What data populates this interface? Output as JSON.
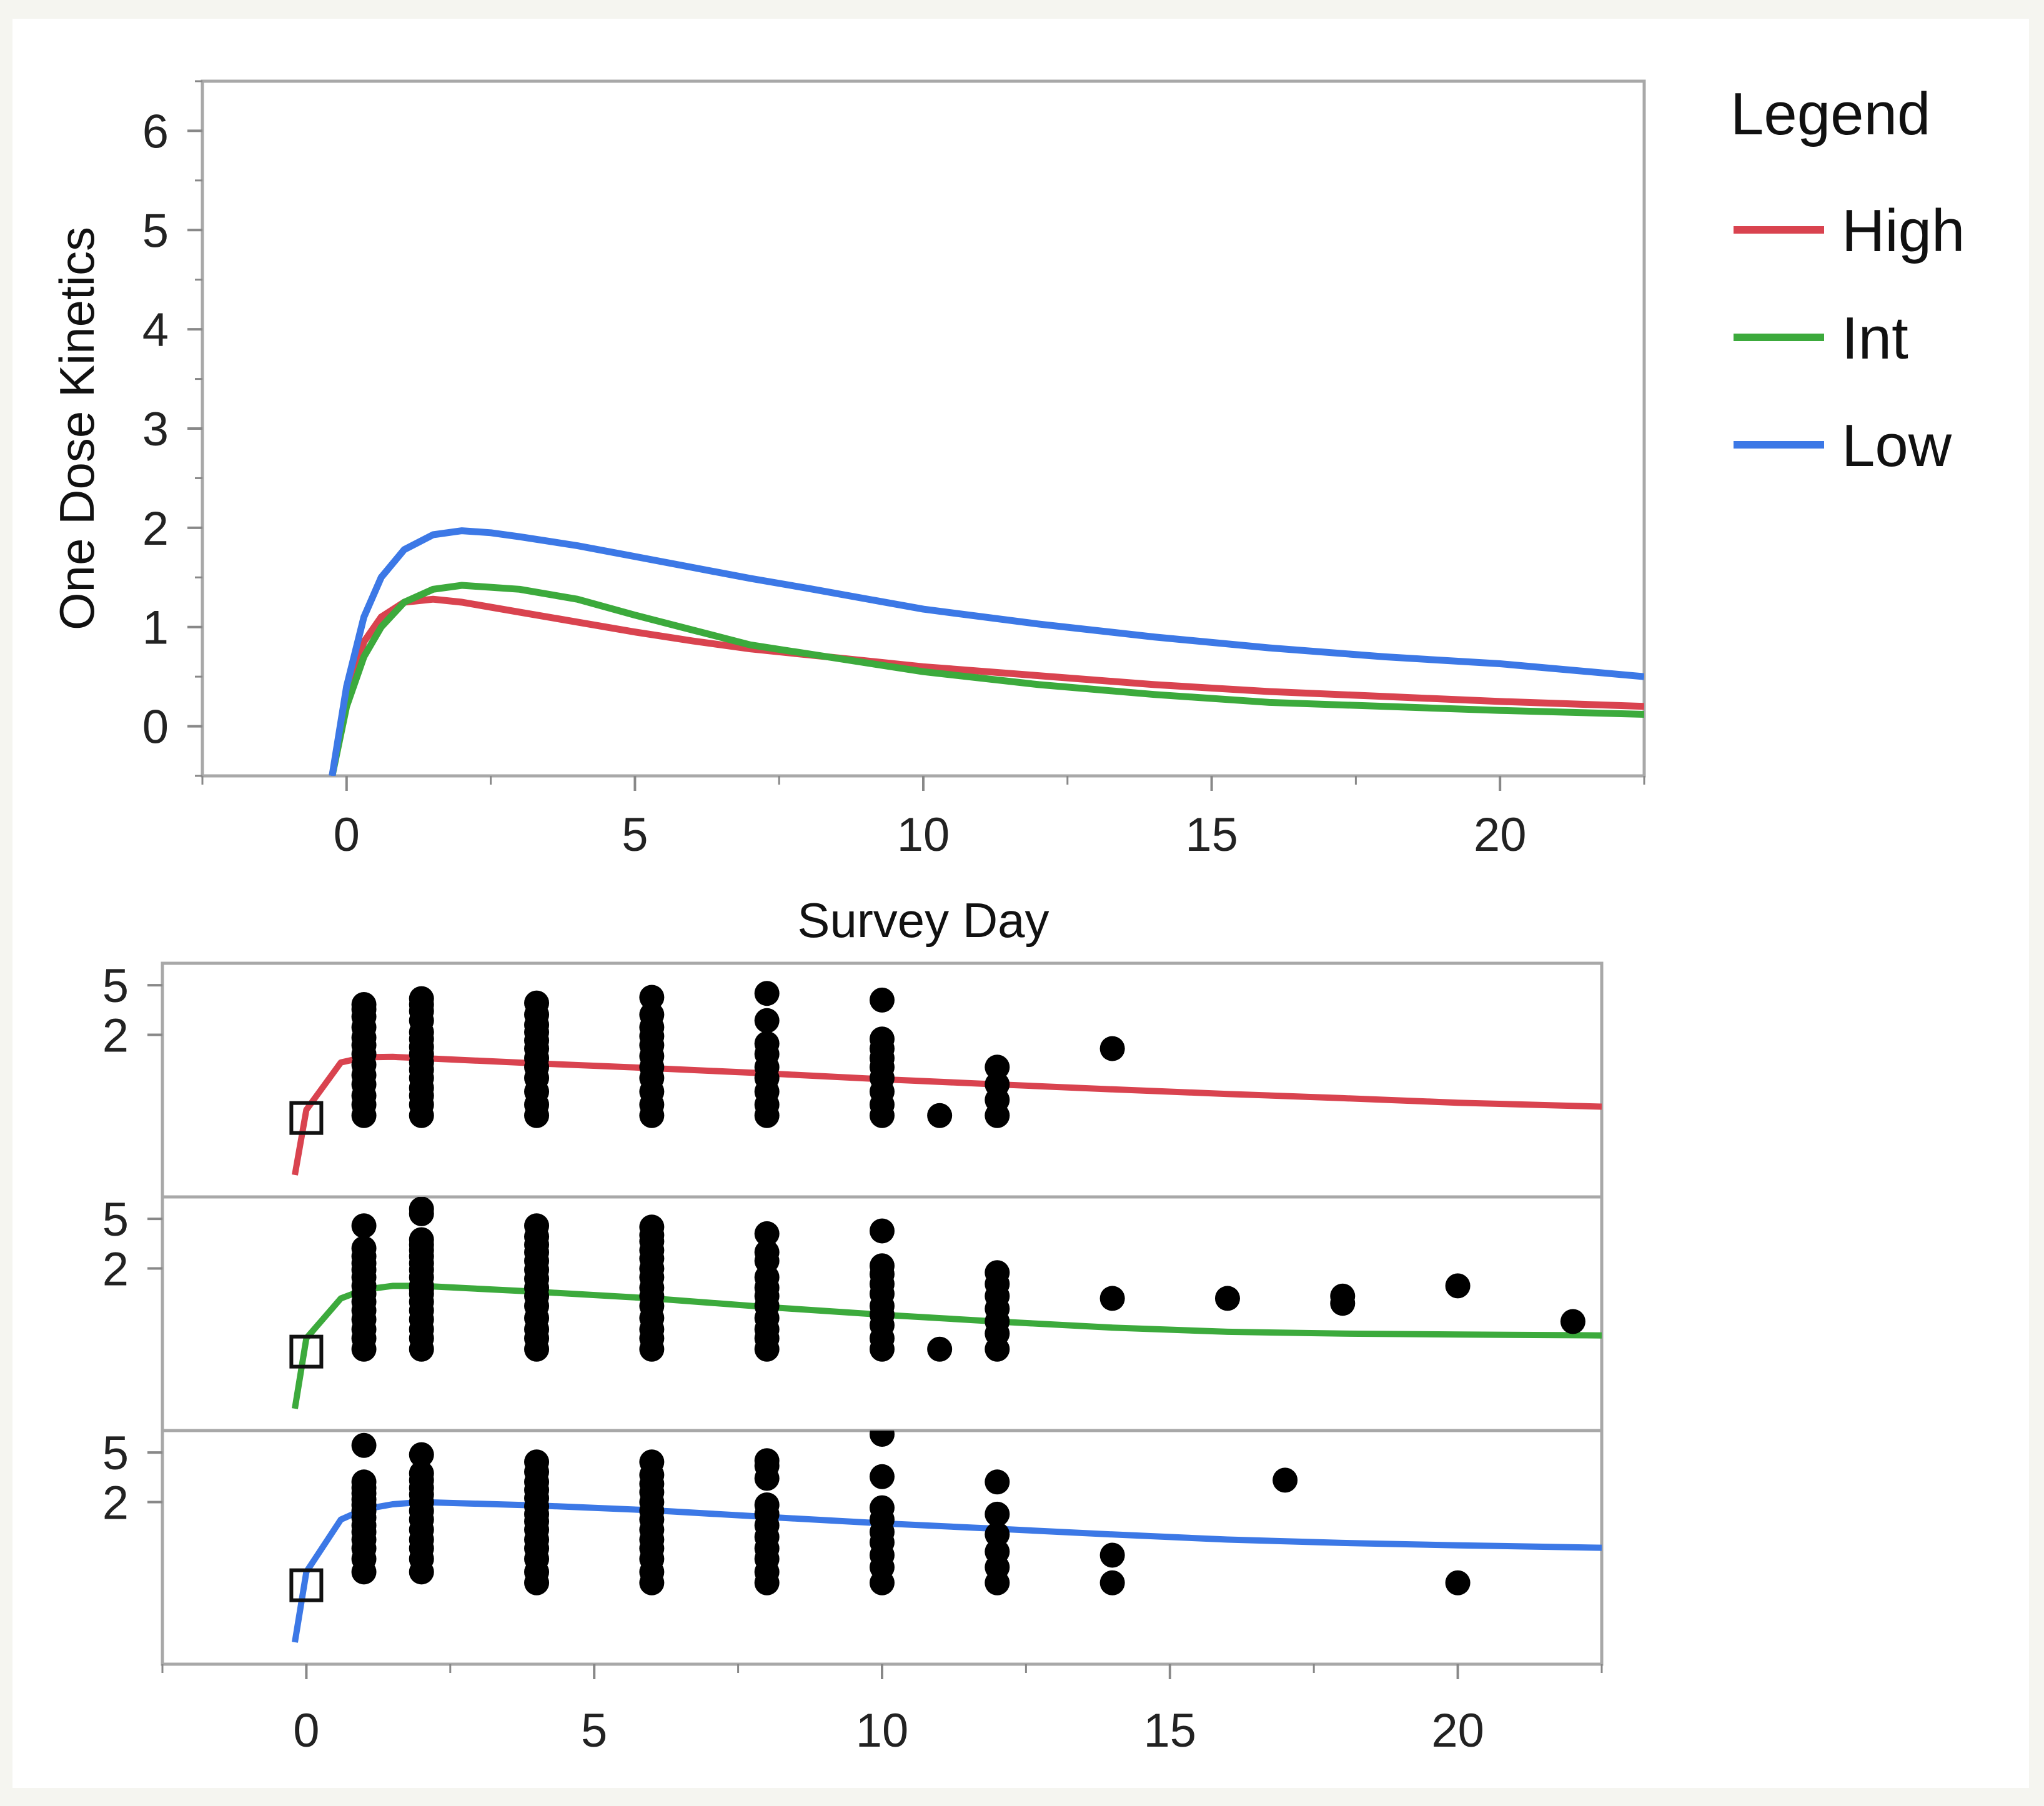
{
  "chart_data": [
    {
      "type": "line",
      "title": "",
      "xlabel": "Survey Day",
      "ylabel": "One Dose Kinetics",
      "xlim": [
        -2.5,
        22.5
      ],
      "ylim": [
        -0.5,
        6.5
      ],
      "xticks": [
        0,
        5,
        10,
        15,
        20
      ],
      "yticks": [
        0,
        1,
        2,
        3,
        4,
        5,
        6
      ],
      "xtick_labels": [
        "0",
        "5",
        "10",
        "15",
        "20"
      ],
      "ytick_labels": [
        "0",
        "1",
        "2",
        "3",
        "4",
        "5",
        "6"
      ],
      "legend": {
        "title": "Legend",
        "position": "right",
        "entries": [
          {
            "name": "High",
            "color": "#d9434f"
          },
          {
            "name": "Int",
            "color": "#3caa3c"
          },
          {
            "name": "Low",
            "color": "#3c78e6"
          }
        ]
      },
      "series": [
        {
          "name": "High",
          "color": "#d9434f",
          "x": [
            -0.25,
            0,
            0.3,
            0.6,
            1.0,
            1.5,
            2.0,
            3.0,
            4.0,
            5.0,
            6.0,
            7.0,
            8.0,
            10.0,
            12.0,
            14.0,
            16.0,
            18.0,
            20.0,
            22.5
          ],
          "y": [
            -0.5,
            0.3,
            0.85,
            1.1,
            1.25,
            1.28,
            1.25,
            1.15,
            1.05,
            0.95,
            0.86,
            0.78,
            0.72,
            0.6,
            0.51,
            0.42,
            0.35,
            0.3,
            0.25,
            0.2
          ]
        },
        {
          "name": "Int",
          "color": "#3caa3c",
          "x": [
            -0.25,
            0,
            0.3,
            0.6,
            1.0,
            1.5,
            2.0,
            3.0,
            4.0,
            5.0,
            6.0,
            7.0,
            8.0,
            10.0,
            12.0,
            14.0,
            16.0,
            18.0,
            20.0,
            22.5
          ],
          "y": [
            -0.5,
            0.2,
            0.7,
            1.0,
            1.25,
            1.38,
            1.42,
            1.38,
            1.28,
            1.12,
            0.97,
            0.82,
            0.73,
            0.55,
            0.42,
            0.32,
            0.24,
            0.2,
            0.16,
            0.12
          ]
        },
        {
          "name": "Low",
          "color": "#3c78e6",
          "x": [
            -0.25,
            0,
            0.3,
            0.6,
            1.0,
            1.5,
            2.0,
            2.5,
            3.0,
            4.0,
            5.0,
            6.0,
            7.0,
            8.0,
            10.0,
            12.0,
            14.0,
            16.0,
            18.0,
            20.0,
            22.5
          ],
          "y": [
            -0.5,
            0.4,
            1.1,
            1.5,
            1.78,
            1.93,
            1.97,
            1.95,
            1.91,
            1.82,
            1.71,
            1.6,
            1.49,
            1.39,
            1.18,
            1.03,
            0.9,
            0.79,
            0.7,
            0.63,
            0.5
          ]
        }
      ]
    },
    {
      "type": "scatter",
      "title": "",
      "xlabel": "",
      "ylabel": "",
      "xlim": [
        -2.5,
        22.5
      ],
      "xticks": [
        0,
        5,
        10,
        15,
        20
      ],
      "xtick_labels": [
        "0",
        "5",
        "10",
        "15",
        "20"
      ],
      "panels": [
        {
          "name": "High",
          "color": "#d9434f",
          "ylim": [
            0.1,
            7.5
          ],
          "yticks": [
            2,
            5
          ],
          "ytick_labels": [
            "2",
            "5"
          ],
          "fit_x": [
            -0.2,
            0,
            0.6,
            1.0,
            1.5,
            2.0,
            4.0,
            6.0,
            8.0,
            10.0,
            12.0,
            14.0,
            16.0,
            18.0,
            20.0,
            22.5
          ],
          "fit_y": [
            0.15,
            0.5,
            1.2,
            1.32,
            1.33,
            1.3,
            1.18,
            1.08,
            0.98,
            0.88,
            0.8,
            0.73,
            0.67,
            0.62,
            0.57,
            0.53
          ],
          "baseline_marker": {
            "x": 0,
            "y": 0.43
          },
          "points_x": [
            1,
            1,
            1,
            1,
            1,
            1,
            1,
            1,
            1,
            1,
            1,
            1,
            1,
            2,
            2,
            2,
            2,
            2,
            2,
            2,
            2,
            2,
            2,
            2,
            2,
            2,
            2,
            2,
            4,
            4,
            4,
            4,
            4,
            4,
            4,
            4,
            4,
            4,
            4,
            4,
            6,
            6,
            6,
            6,
            6,
            6,
            6,
            6,
            6,
            6,
            6,
            8,
            8,
            8,
            8,
            8,
            8,
            8,
            8,
            8,
            10,
            10,
            10,
            10,
            10,
            10,
            10,
            10,
            10,
            11,
            12,
            12,
            12,
            12,
            14
          ],
          "points_y": [
            0.45,
            0.55,
            0.65,
            0.8,
            0.95,
            1.15,
            1.4,
            1.65,
            1.9,
            2.3,
            2.8,
            3.2,
            3.5,
            0.45,
            0.55,
            0.65,
            0.75,
            0.9,
            1.05,
            1.2,
            1.4,
            1.6,
            1.85,
            2.1,
            2.6,
            3.1,
            3.5,
            3.9,
            0.45,
            0.55,
            0.7,
            0.9,
            1.1,
            1.3,
            1.55,
            1.8,
            2.1,
            2.4,
            2.9,
            3.6,
            0.45,
            0.55,
            0.7,
            0.9,
            1.1,
            1.35,
            1.65,
            1.95,
            2.3,
            2.9,
            4.0,
            0.45,
            0.55,
            0.7,
            0.9,
            1.1,
            1.4,
            1.7,
            2.6,
            4.3,
            0.45,
            0.55,
            0.7,
            0.9,
            1.1,
            1.3,
            1.55,
            1.85,
            3.8,
            0.45,
            0.45,
            0.6,
            0.8,
            1.1,
            1.55
          ]
        },
        {
          "name": "Int",
          "color": "#3caa3c",
          "ylim": [
            0.1,
            7.5
          ],
          "yticks": [
            2,
            5
          ],
          "ytick_labels": [
            "2",
            "5"
          ],
          "fit_x": [
            -0.2,
            0,
            0.6,
            1.0,
            1.5,
            2.0,
            4.0,
            6.0,
            8.0,
            10.0,
            12.0,
            14.0,
            16.0,
            18.0,
            20.0,
            22.5
          ],
          "fit_y": [
            0.15,
            0.55,
            1.15,
            1.35,
            1.45,
            1.45,
            1.3,
            1.15,
            0.98,
            0.85,
            0.75,
            0.67,
            0.62,
            0.6,
            0.59,
            0.58
          ],
          "baseline_marker": {
            "x": 0,
            "y": 0.43
          },
          "points_x": [
            1,
            1,
            1,
            1,
            1,
            1,
            1,
            1,
            1,
            1,
            1,
            1,
            1,
            1,
            2,
            2,
            2,
            2,
            2,
            2,
            2,
            2,
            2,
            2,
            2,
            2,
            2,
            2,
            2,
            2,
            2,
            2,
            4,
            4,
            4,
            4,
            4,
            4,
            4,
            4,
            4,
            4,
            4,
            4,
            4,
            4,
            6,
            6,
            6,
            6,
            6,
            6,
            6,
            6,
            6,
            6,
            6,
            6,
            6,
            6,
            8,
            8,
            8,
            8,
            8,
            8,
            8,
            8,
            8,
            8,
            8,
            10,
            10,
            10,
            10,
            10,
            10,
            10,
            10,
            10,
            10,
            11,
            12,
            12,
            12,
            12,
            12,
            12,
            12,
            14,
            16,
            18,
            18,
            20,
            22
          ],
          "points_y": [
            0.45,
            0.55,
            0.65,
            0.78,
            0.92,
            1.08,
            1.25,
            1.45,
            1.7,
            1.95,
            2.2,
            2.5,
            2.9,
            4.4,
            0.45,
            0.55,
            0.65,
            0.78,
            0.92,
            1.08,
            1.25,
            1.45,
            1.7,
            1.95,
            2.2,
            2.5,
            2.8,
            3.1,
            3.4,
            5.5,
            6.0,
            1.35,
            0.45,
            0.55,
            0.65,
            0.8,
            1.0,
            1.2,
            1.4,
            1.65,
            1.95,
            2.3,
            2.7,
            3.1,
            3.6,
            4.4,
            0.45,
            0.55,
            0.65,
            0.8,
            1.0,
            1.2,
            1.4,
            1.7,
            2.0,
            2.4,
            2.8,
            3.3,
            3.7,
            4.3,
            0.45,
            0.55,
            0.65,
            0.8,
            1.0,
            1.2,
            1.4,
            1.7,
            2.3,
            2.7,
            3.8,
            0.45,
            0.55,
            0.7,
            0.85,
            1.0,
            1.25,
            1.5,
            1.8,
            2.1,
            4.0,
            0.45,
            0.45,
            0.6,
            0.75,
            0.95,
            1.2,
            1.5,
            1.85,
            1.15,
            1.15,
            1.05,
            1.2,
            1.45,
            0.75
          ]
        },
        {
          "name": "Low",
          "color": "#3c78e6",
          "ylim": [
            0.1,
            7.5
          ],
          "yticks": [
            2,
            5
          ],
          "ytick_labels": [
            "2",
            "5"
          ],
          "fit_x": [
            -0.2,
            0,
            0.6,
            1.0,
            1.5,
            2.0,
            4.0,
            6.0,
            8.0,
            10.0,
            12.0,
            14.0,
            16.0,
            18.0,
            20.0,
            22.5
          ],
          "fit_y": [
            0.15,
            0.55,
            1.45,
            1.75,
            1.92,
            2.0,
            1.88,
            1.72,
            1.52,
            1.35,
            1.22,
            1.1,
            1.0,
            0.94,
            0.9,
            0.86
          ],
          "baseline_marker": {
            "x": 0,
            "y": 0.43
          },
          "points_x": [
            1,
            1,
            1,
            1,
            1,
            1,
            1,
            1,
            1,
            1,
            1,
            1,
            1,
            1,
            2,
            2,
            2,
            2,
            2,
            2,
            2,
            2,
            2,
            2,
            2,
            2,
            2,
            4,
            4,
            4,
            4,
            4,
            4,
            4,
            4,
            4,
            4,
            4,
            4,
            4,
            4,
            6,
            6,
            6,
            6,
            6,
            6,
            6,
            6,
            6,
            6,
            6,
            6,
            6,
            8,
            8,
            8,
            8,
            8,
            8,
            8,
            8,
            8,
            8,
            8,
            10,
            10,
            10,
            10,
            10,
            10,
            10,
            10,
            10,
            12,
            12,
            12,
            12,
            12,
            12,
            14,
            14,
            17,
            20
          ],
          "points_y": [
            0.55,
            0.7,
            0.85,
            1.0,
            1.15,
            1.3,
            1.5,
            1.7,
            1.9,
            2.1,
            2.35,
            2.6,
            2.9,
            5.7,
            0.55,
            0.7,
            0.85,
            1.0,
            1.2,
            1.45,
            1.7,
            2.0,
            2.3,
            2.6,
            3.0,
            3.4,
            4.8,
            0.45,
            0.55,
            0.7,
            0.85,
            1.0,
            1.2,
            1.4,
            1.6,
            1.85,
            2.15,
            2.5,
            2.9,
            3.5,
            4.2,
            0.45,
            0.55,
            0.7,
            0.85,
            1.0,
            1.2,
            1.45,
            1.7,
            2.0,
            2.4,
            2.8,
            3.3,
            4.2,
            0.45,
            0.55,
            0.7,
            0.85,
            1.05,
            1.3,
            1.6,
            1.9,
            3.1,
            3.9,
            4.3,
            0.45,
            0.6,
            0.75,
            0.95,
            1.15,
            1.45,
            1.8,
            3.2,
            7.0,
            0.45,
            0.6,
            0.8,
            1.1,
            1.6,
            2.9,
            0.45,
            0.75,
            3.0,
            0.45
          ]
        }
      ]
    }
  ]
}
